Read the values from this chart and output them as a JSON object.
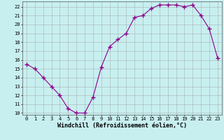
{
  "x": [
    0,
    1,
    2,
    3,
    4,
    5,
    6,
    7,
    8,
    9,
    10,
    11,
    12,
    13,
    14,
    15,
    16,
    17,
    18,
    19,
    20,
    21,
    22,
    23
  ],
  "y": [
    15.5,
    15.0,
    14.0,
    13.0,
    12.0,
    10.5,
    10.0,
    10.0,
    11.8,
    15.2,
    17.5,
    18.3,
    19.0,
    20.8,
    21.0,
    21.8,
    22.2,
    22.2,
    22.2,
    22.0,
    22.2,
    21.0,
    19.5,
    16.2
  ],
  "line_color": "#8B008B",
  "marker": "+",
  "markersize": 4,
  "linewidth": 0.8,
  "background_color": "#c8eff0",
  "grid_color": "#999999",
  "xlabel": "Windchill (Refroidissement éolien,°C)",
  "xlabel_fontsize": 6,
  "tick_fontsize": 5,
  "ylim": [
    9.8,
    22.6
  ],
  "xlim": [
    -0.5,
    23.5
  ],
  "yticks": [
    10,
    11,
    12,
    13,
    14,
    15,
    16,
    17,
    18,
    19,
    20,
    21,
    22
  ],
  "xticks": [
    0,
    1,
    2,
    3,
    4,
    5,
    6,
    7,
    8,
    9,
    10,
    11,
    12,
    13,
    14,
    15,
    16,
    17,
    18,
    19,
    20,
    21,
    22,
    23
  ]
}
